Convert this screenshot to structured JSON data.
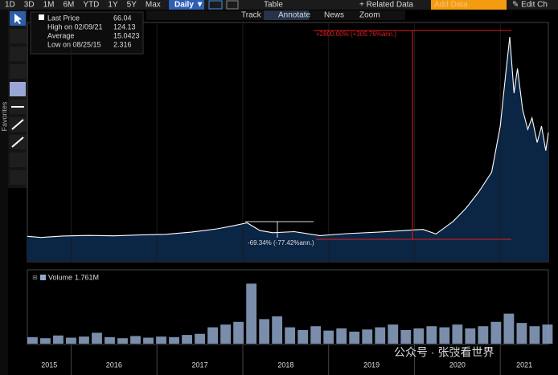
{
  "toolbar": {
    "periods": [
      "1D",
      "3D",
      "1M",
      "6M",
      "YTD",
      "1Y",
      "5Y",
      "Max"
    ],
    "frequency": "Daily ▼",
    "table": "Table",
    "related": "+ Related Data",
    "add_data": "Add Data",
    "edit": "✎ Edit Ch"
  },
  "subtoolbar": [
    "Track",
    "Annotate",
    "News",
    "Zoom"
  ],
  "side_panel": {
    "favorites": "Favorites"
  },
  "watermark": "公众号 · 张弢看世界",
  "chart_data": [
    {
      "type": "area",
      "x": [
        2015.49,
        2015.65,
        2015.9,
        2016.2,
        2016.5,
        2016.8,
        2017.1,
        2017.4,
        2017.7,
        2017.9,
        2018.05,
        2018.2,
        2018.35,
        2018.6,
        2018.9,
        2019.2,
        2019.6,
        2019.9,
        2020.1,
        2020.25,
        2020.45,
        2020.6,
        2020.75,
        2020.9,
        2021.0,
        2021.06,
        2021.11,
        2021.16,
        2021.2,
        2021.26,
        2021.32,
        2021.37,
        2021.43,
        2021.48,
        2021.53,
        2021.56
      ],
      "series": [
        {
          "name": "Last Price",
          "color": "#ffffff",
          "fill": "#0b2545",
          "values": [
            3.0,
            2.316,
            3.2,
            3.5,
            3.3,
            3.8,
            4.2,
            5.5,
            7.5,
            9.5,
            11.2,
            6.5,
            5.2,
            5.8,
            3.4,
            4.6,
            5.6,
            6.6,
            7.2,
            4.4,
            12,
            20,
            30,
            42,
            70,
            100,
            124.13,
            90,
            105,
            80,
            68,
            75,
            60,
            70,
            55,
            66.04
          ]
        }
      ],
      "legend": [
        {
          "label": "Last Price",
          "value": "66.04"
        },
        {
          "label": "High on 02/09/21",
          "value": "124.13"
        },
        {
          "label": "Average",
          "value": "15.0423"
        },
        {
          "label": "Low on 08/25/15",
          "value": "2.316"
        }
      ],
      "annotations": [
        "+2800.00% (+305.76%ann.)",
        "-69.34% (-77.42%ann.)"
      ],
      "xlim": [
        2015.49,
        2021.56
      ],
      "ylim": [
        -12,
        131
      ],
      "xticks": [
        {
          "value": 2015,
          "label": "2015"
        },
        {
          "value": 2016,
          "label": "2016"
        },
        {
          "value": 2017,
          "label": "2017"
        },
        {
          "value": 2018,
          "label": "2018"
        },
        {
          "value": 2019,
          "label": "2019"
        },
        {
          "value": 2020,
          "label": "2020"
        },
        {
          "value": 2021,
          "label": "2021"
        }
      ]
    },
    {
      "type": "bar",
      "x": [
        2015.55,
        2015.7,
        2015.85,
        2016.0,
        2016.15,
        2016.3,
        2016.45,
        2016.6,
        2016.75,
        2016.9,
        2017.05,
        2017.2,
        2017.35,
        2017.5,
        2017.65,
        2017.8,
        2017.95,
        2018.1,
        2018.25,
        2018.4,
        2018.55,
        2018.7,
        2018.85,
        2019.0,
        2019.15,
        2019.3,
        2019.45,
        2019.6,
        2019.75,
        2019.9,
        2020.05,
        2020.2,
        2020.35,
        2020.5,
        2020.65,
        2020.8,
        2020.95,
        2021.1,
        2021.25,
        2021.4,
        2021.55
      ],
      "series": [
        {
          "name": "Volume",
          "color": "#8fa7c9",
          "values": [
            1.2,
            1.0,
            1.5,
            1.1,
            1.3,
            2.0,
            1.2,
            1.0,
            1.4,
            1.1,
            1.3,
            1.2,
            1.6,
            1.8,
            3.0,
            3.5,
            4.0,
            11.0,
            4.5,
            5.0,
            3.0,
            2.5,
            3.2,
            2.4,
            2.8,
            2.2,
            2.6,
            3.0,
            3.5,
            2.5,
            2.8,
            3.2,
            3.0,
            3.5,
            2.8,
            3.2,
            4.0,
            5.5,
            3.8,
            3.2,
            3.5
          ]
        }
      ],
      "last_label": "1.761M",
      "ylim": [
        0,
        12.5
      ]
    }
  ]
}
